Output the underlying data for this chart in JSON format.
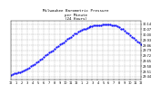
{
  "title": "Milwaukee Barometric Pressure\nper Minute\n(24 Hours)",
  "bg_color": "#ffffff",
  "plot_bg_color": "#ffffff",
  "dot_color": "#0000ff",
  "grid_color": "#aaaaaa",
  "title_color": "#000000",
  "tick_color": "#000000",
  "ylabel_right": [
    "30.14",
    "30.07",
    "30.00",
    "29.93",
    "29.86",
    "29.79",
    "29.72",
    "29.65",
    "29.58",
    "29.51",
    "29.44"
  ],
  "ylim": [
    29.4,
    30.18
  ],
  "xlim": [
    0,
    1440
  ],
  "x_ticks": [
    0,
    60,
    120,
    180,
    240,
    300,
    360,
    420,
    480,
    540,
    600,
    660,
    720,
    780,
    840,
    900,
    960,
    1020,
    1080,
    1140,
    1200,
    1260,
    1320,
    1380,
    1440
  ],
  "x_labels": [
    "12",
    "1",
    "2",
    "3",
    "4",
    "5",
    "6",
    "7",
    "8",
    "9",
    "10",
    "11",
    "12",
    "1",
    "2",
    "3",
    "4",
    "5",
    "6",
    "7",
    "8",
    "9",
    "10",
    "11",
    "12"
  ],
  "data_x": [
    0,
    20,
    40,
    60,
    80,
    100,
    120,
    140,
    160,
    180,
    200,
    220,
    240,
    260,
    280,
    300,
    320,
    340,
    360,
    380,
    400,
    420,
    440,
    460,
    480,
    500,
    520,
    540,
    560,
    580,
    600,
    620,
    640,
    660,
    680,
    700,
    720,
    740,
    760,
    780,
    800,
    820,
    840,
    860,
    880,
    900,
    920,
    940,
    960,
    980,
    1000,
    1020,
    1040,
    1060,
    1080,
    1100,
    1120,
    1140,
    1160,
    1180,
    1200,
    1220,
    1240,
    1260,
    1280,
    1300,
    1320,
    1340,
    1360,
    1380,
    1400,
    1420,
    1440
  ],
  "data_y": [
    29.46,
    29.47,
    29.48,
    29.48,
    29.49,
    29.5,
    29.51,
    29.52,
    29.53,
    29.54,
    29.56,
    29.58,
    29.59,
    29.61,
    29.63,
    29.64,
    29.66,
    29.68,
    29.7,
    29.72,
    29.74,
    29.76,
    29.77,
    29.79,
    29.81,
    29.83,
    29.85,
    29.87,
    29.88,
    29.9,
    29.92,
    29.94,
    29.96,
    29.97,
    29.99,
    30.01,
    30.02,
    30.04,
    30.05,
    30.06,
    30.07,
    30.08,
    30.09,
    30.1,
    30.11,
    30.11,
    30.12,
    30.12,
    30.13,
    30.13,
    30.13,
    30.14,
    30.14,
    30.14,
    30.14,
    30.14,
    30.13,
    30.13,
    30.12,
    30.11,
    30.1,
    30.08,
    30.07,
    30.05,
    30.03,
    30.01,
    29.99,
    29.97,
    29.95,
    29.93,
    29.91,
    29.89,
    29.87
  ]
}
